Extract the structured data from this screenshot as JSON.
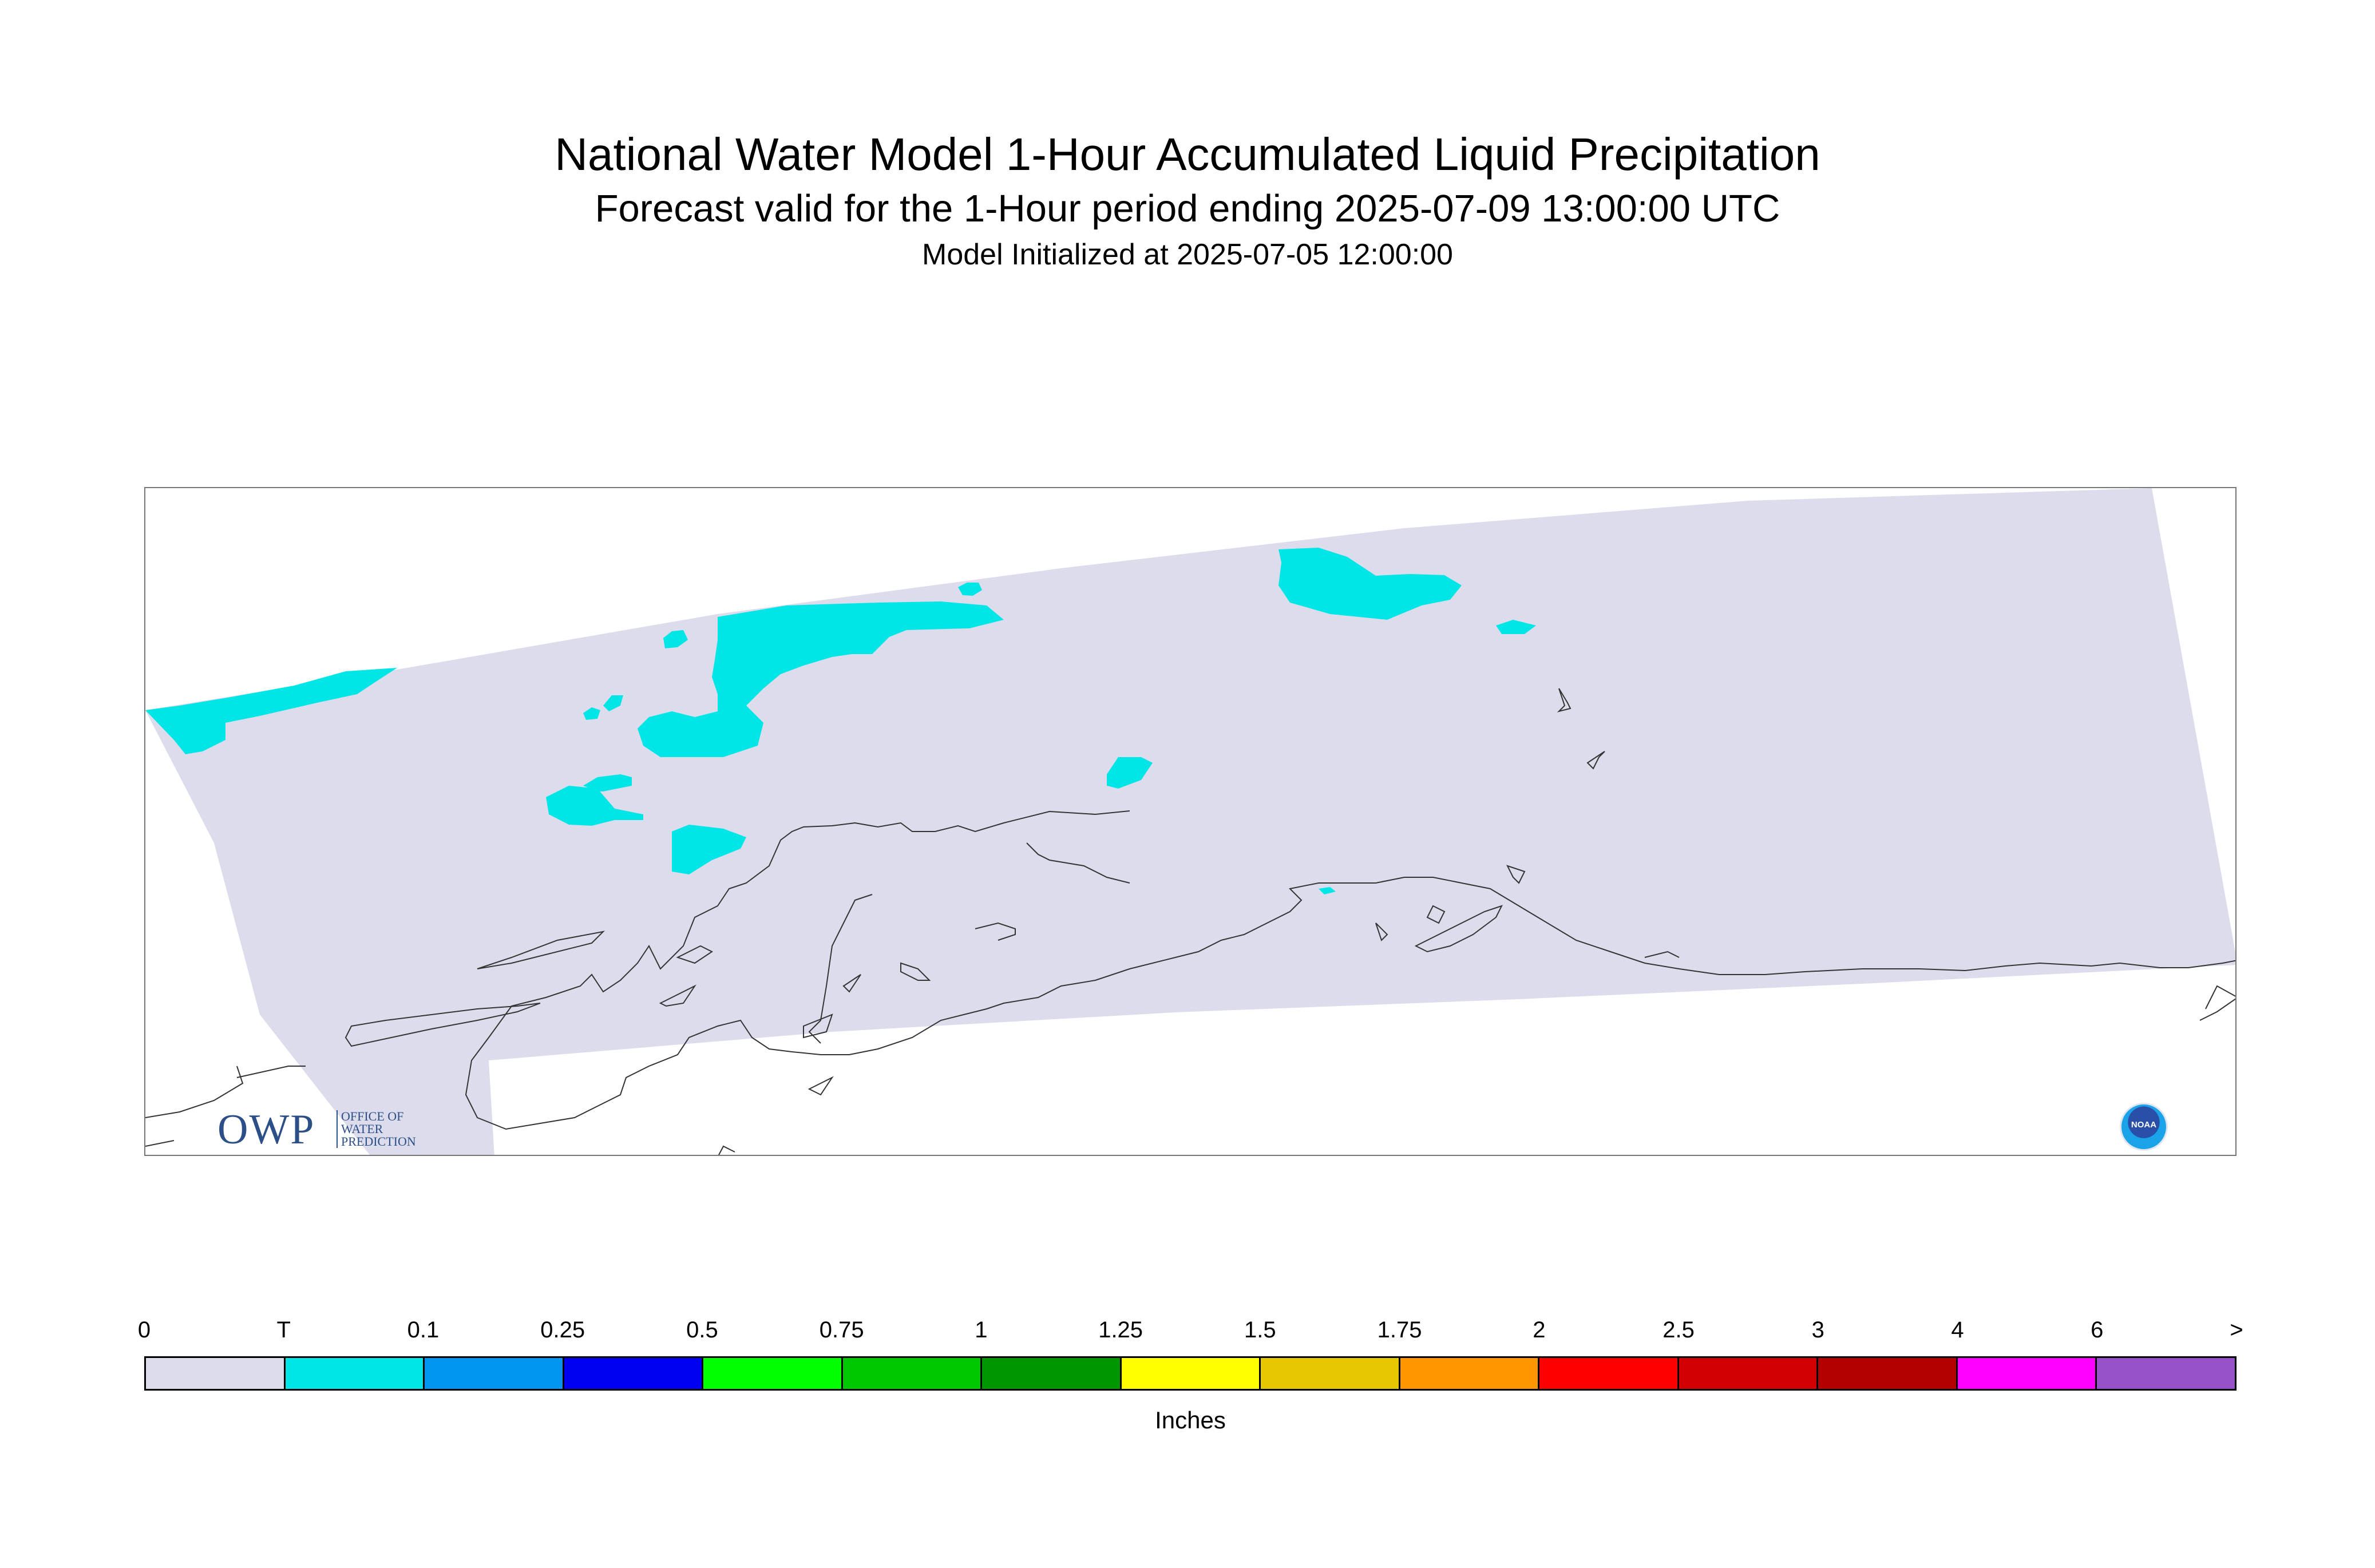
{
  "header": {
    "title": "National Water Model 1-Hour Accumulated Liquid Precipitation",
    "subtitle": "Forecast valid for the 1-Hour period ending 2025-07-09 13:00:00 UTC",
    "init": "Model Initialized at 2025-07-05 12:00:00"
  },
  "map": {
    "domain_fill": "#dcdcec",
    "precip_fill": "#00e6e6",
    "coast_color": "#333333"
  },
  "logos": {
    "owp_letters": "OWP",
    "owp_line1": "OFFICE OF",
    "owp_line2": "WATER",
    "owp_line3": "PREDICTION",
    "noaa": "NOAA"
  },
  "legend": {
    "labels": [
      "0",
      "T",
      "0.1",
      "0.25",
      "0.5",
      "0.75",
      "1",
      "1.25",
      "1.5",
      "1.75",
      "2",
      "2.5",
      "3",
      "4",
      "6",
      ">"
    ],
    "colors": [
      "#dcdcec",
      "#00e6e6",
      "#0096f0",
      "#0000f0",
      "#00ff00",
      "#00c800",
      "#009600",
      "#ffff00",
      "#e6c800",
      "#ff9600",
      "#ff0000",
      "#d20000",
      "#b40000",
      "#ff00ff",
      "#9650c8"
    ],
    "unit": "Inches"
  }
}
